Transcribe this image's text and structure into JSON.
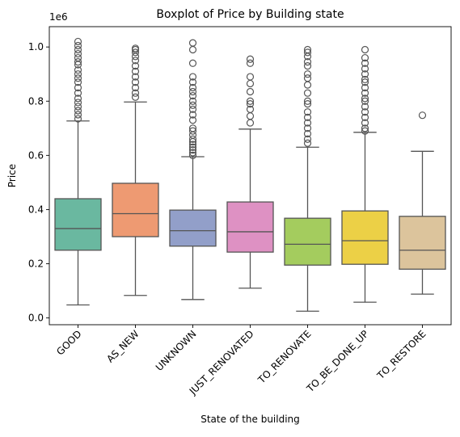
{
  "chart_data": {
    "type": "box",
    "title": "Boxplot of Price by Building state",
    "xlabel": "State of the building",
    "ylabel": "Price",
    "y_multiplier_label": "1e6",
    "ylim": [
      -0.025,
      1.075
    ],
    "yticks": [
      0.0,
      0.2,
      0.4,
      0.6,
      0.8,
      1.0
    ],
    "ytick_labels": [
      "0.0",
      "0.2",
      "0.4",
      "0.6",
      "0.8",
      "1.0"
    ],
    "grid": false,
    "legend": "none",
    "categories": [
      "GOOD",
      "AS_NEW",
      "UNKNOWN",
      "JUST_RENOVATED",
      "TO_RENOVATE",
      "TO_BE_DONE_UP",
      "TO_RESTORE"
    ],
    "colors": [
      "#6ab8a0",
      "#ee9a72",
      "#929fc9",
      "#de91c3",
      "#a4cc5e",
      "#ecd046",
      "#dcc49c"
    ],
    "boxes": [
      {
        "whisker_low": 0.048,
        "q1": 0.25,
        "median": 0.33,
        "q3": 0.44,
        "whisker_high": 0.727,
        "outliers": [
          0.735,
          0.75,
          0.765,
          0.78,
          0.795,
          0.81,
          0.83,
          0.85,
          0.87,
          0.885,
          0.9,
          0.915,
          0.935,
          0.945,
          0.96,
          0.975,
          0.99,
          1.005,
          1.02
        ]
      },
      {
        "whisker_low": 0.083,
        "q1": 0.3,
        "median": 0.385,
        "q3": 0.497,
        "whisker_high": 0.797,
        "outliers": [
          0.815,
          0.83,
          0.85,
          0.87,
          0.89,
          0.91,
          0.93,
          0.95,
          0.965,
          0.98,
          0.99,
          0.995
        ]
      },
      {
        "whisker_low": 0.068,
        "q1": 0.265,
        "median": 0.322,
        "q3": 0.398,
        "whisker_high": 0.595,
        "outliers": [
          0.6,
          0.61,
          0.62,
          0.63,
          0.64,
          0.65,
          0.66,
          0.675,
          0.69,
          0.7,
          0.73,
          0.75,
          0.77,
          0.785,
          0.8,
          0.82,
          0.835,
          0.85,
          0.87,
          0.89,
          0.94,
          0.99,
          1.015
        ]
      },
      {
        "whisker_low": 0.11,
        "q1": 0.243,
        "median": 0.318,
        "q3": 0.428,
        "whisker_high": 0.697,
        "outliers": [
          0.72,
          0.745,
          0.77,
          0.79,
          0.8,
          0.835,
          0.865,
          0.89,
          0.94,
          0.955
        ]
      },
      {
        "whisker_low": 0.025,
        "q1": 0.195,
        "median": 0.272,
        "q3": 0.368,
        "whisker_high": 0.63,
        "outliers": [
          0.645,
          0.66,
          0.68,
          0.7,
          0.72,
          0.74,
          0.76,
          0.79,
          0.8,
          0.83,
          0.86,
          0.885,
          0.9,
          0.93,
          0.945,
          0.965,
          0.98,
          0.99
        ]
      },
      {
        "whisker_low": 0.058,
        "q1": 0.198,
        "median": 0.285,
        "q3": 0.395,
        "whisker_high": 0.685,
        "outliers": [
          0.69,
          0.7,
          0.72,
          0.74,
          0.76,
          0.78,
          0.8,
          0.81,
          0.83,
          0.85,
          0.87,
          0.88,
          0.9,
          0.92,
          0.94,
          0.96,
          0.99
        ]
      },
      {
        "whisker_low": 0.088,
        "q1": 0.18,
        "median": 0.25,
        "q3": 0.375,
        "whisker_high": 0.615,
        "outliers": [
          0.748
        ]
      }
    ]
  }
}
